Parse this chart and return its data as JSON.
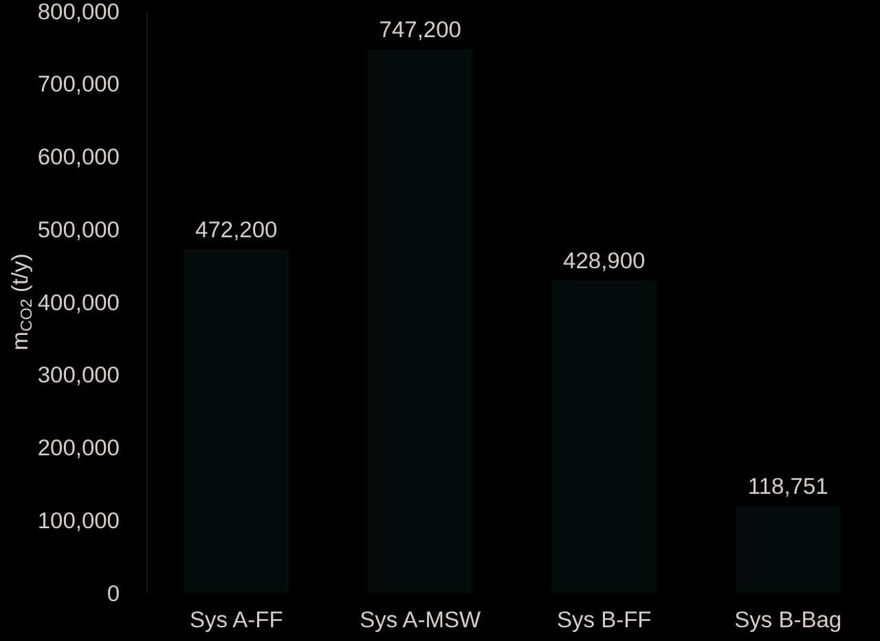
{
  "chart_data": {
    "type": "bar",
    "ylabel": "m$_{CO2}$ (t/y)",
    "categories": [
      "Sys A-FF",
      "Sys A-MSW",
      "Sys B-FF",
      "Sys B-Bag"
    ],
    "values": [
      472200,
      747200,
      428900,
      118751
    ],
    "value_labels": [
      "472,200",
      "747,200",
      "428,900",
      "118,751"
    ],
    "color": "#050d0c",
    "ylim": [
      0,
      800000
    ],
    "yticks": [
      0,
      {
        "value": 100000,
        "label": "100,000"
      },
      {
        "value": 200000,
        "label": "200,000"
      },
      {
        "value": 300000,
        "label": "300,000"
      },
      {
        "value": 400000,
        "label": "400,000"
      },
      {
        "value": 500000,
        "label": "500,000"
      },
      {
        "value": 600000,
        "label": "600,000"
      },
      {
        "value": 700000,
        "label": "700,000"
      },
      {
        "value": 800000,
        "label": "800,000"
      }
    ]
  }
}
